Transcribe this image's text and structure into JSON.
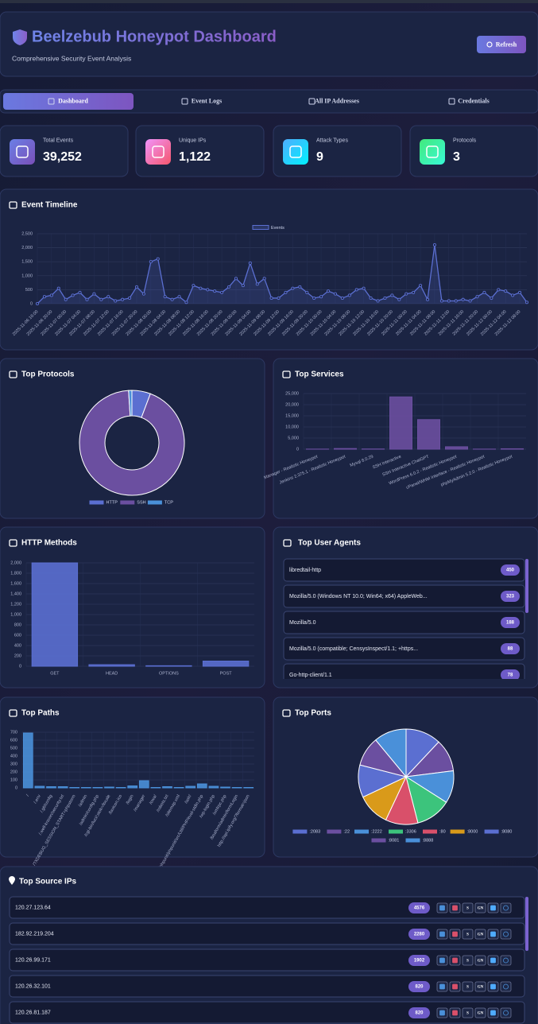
{
  "header": {
    "title": "Beelzebub Honeypot Dashboard",
    "subtitle": "Comprehensive Security Event Analysis",
    "button": "Refresh"
  },
  "nav": [
    "Dashboard",
    "Event Logs",
    "All IP Addresses",
    "Credentials"
  ],
  "stats": [
    {
      "label": "Total Events",
      "value": "39,252"
    },
    {
      "label": "Unique IPs",
      "value": "1,122"
    },
    {
      "label": "Attack Types",
      "value": 9
    },
    {
      "label": "Protocols",
      "value": 3
    }
  ],
  "chart_data": [
    {
      "type": "line",
      "title": "Event Timeline",
      "categories": [
        "2025-11-06 16:00",
        null,
        "2025-11-06 20:00",
        null,
        "2025-11-07 00:00",
        null,
        "2025-11-07 04:00",
        null,
        "2025-11-07 08:00",
        null,
        "2025-11-07 12:00",
        null,
        "2025-11-07 16:00",
        null,
        "2025-11-07 20:00",
        null,
        "2025-11-08 00:00",
        null,
        "2025-11-08 04:00",
        null,
        "2025-11-08 08:00",
        null,
        "2025-11-08 12:00",
        null,
        "2025-11-08 16:00",
        null,
        "2025-11-08 20:00",
        null,
        "2025-11-09 00:00",
        null,
        "2025-11-09 04:00",
        null,
        "2025-11-09 08:00",
        null,
        "2025-11-09 12:00",
        null,
        "2025-11-09 16:00",
        null,
        "2025-11-09 20:00",
        null,
        "2025-11-10 00:00",
        null,
        "2025-11-10 04:00",
        null,
        "2025-11-10 08:00",
        null,
        "2025-11-10 12:00",
        null,
        "2025-11-10 16:00",
        null,
        "2025-11-10 20:00",
        null,
        "2025-11-11 00:00",
        null,
        "2025-11-11 04:00",
        null,
        "2025-11-11 08:00",
        null,
        "2025-11-11 12:00",
        null,
        "2025-11-11 16:00",
        null,
        "2025-11-11 20:00",
        null,
        "2025-11-12 00:00",
        null,
        "2025-11-12 04:00",
        null,
        "2025-11-12 08:00",
        null
      ],
      "series": [
        {
          "name": "Events",
          "color": "#5b6fd1",
          "values": [
            0,
            250,
            300,
            550,
            150,
            300,
            400,
            150,
            350,
            150,
            250,
            100,
            150,
            200,
            600,
            350,
            1500,
            1600,
            250,
            150,
            250,
            50,
            650,
            550,
            500,
            450,
            400,
            600,
            900,
            650,
            1450,
            700,
            900,
            200,
            200,
            400,
            550,
            600,
            400,
            200,
            250,
            450,
            350,
            200,
            300,
            500,
            550,
            200,
            100,
            200,
            300,
            150,
            350,
            400,
            650,
            150,
            2100,
            100,
            100,
            100,
            150,
            100,
            250,
            400,
            200,
            500,
            450,
            300,
            400,
            50
          ]
        }
      ],
      "ylim": [
        0,
        2500
      ],
      "yticks": [
        0,
        500,
        {
          "value": 1000,
          "label": "1,000"
        },
        {
          "value": 1500,
          "label": "1,500"
        },
        {
          "value": 2000,
          "label": "2,000"
        },
        {
          "value": 2500,
          "label": "2,500"
        }
      ]
    },
    {
      "type": "doughnut",
      "title": "Top Protocols",
      "categories": [
        "HTTP",
        "SSH",
        "TCP"
      ],
      "values": [
        2250,
        36600,
        402
      ],
      "colors": [
        "#5b6fd1",
        "#6b4fa0",
        "#4a90d9"
      ]
    },
    {
      "type": "bar",
      "title": "Top Services",
      "categories": [
        "Manager - Realistic Honeypot",
        "Jenkins 2.375.1 - Realistic Honeypot",
        "Mysql 8.0.29",
        "SSH Interactive",
        "SSH Interactive ChatGPT",
        "WordPress 6.0.2 - Realistic Honeypot",
        "cPanel/WHM Interface - Realistic Honeypot",
        "phpMyAdmin 5.2.0 - Realistic Honeypot"
      ],
      "values": [
        50,
        300,
        100,
        23500,
        13300,
        1100,
        50,
        200
      ],
      "color": "#6b4fa0",
      "ylim": [
        0,
        25000
      ],
      "yticks": [
        0,
        {
          "value": 5000,
          "label": "5,000"
        },
        {
          "value": 10000,
          "label": "10,000"
        },
        {
          "value": 15000,
          "label": "15,000"
        },
        {
          "value": 20000,
          "label": "20,000"
        },
        {
          "value": 25000,
          "label": "25,000"
        }
      ]
    },
    {
      "type": "bar",
      "title": "HTTP Methods",
      "categories": [
        "GET",
        "HEAD",
        "OPTIONS",
        "POST"
      ],
      "values": [
        2000,
        30,
        10,
        100
      ],
      "color": "#5b6fd1",
      "ylim": [
        0,
        2000
      ],
      "yticks": [
        0,
        200,
        400,
        600,
        800,
        {
          "value": 1000,
          "label": "1,000"
        },
        {
          "value": 1200,
          "label": "1,200"
        },
        {
          "value": 1400,
          "label": "1,400"
        },
        {
          "value": 1600,
          "label": "1,600"
        },
        {
          "value": 1800,
          "label": "1,800"
        },
        {
          "value": 2000,
          "label": "2,000"
        }
      ]
    },
    {
      "type": "bar",
      "title": "Top Paths",
      "categories": [
        "/",
        "/.env",
        "/.git/config",
        "/.well-known/security.txt",
        "/?XDEBUG_SESSION_START=phpstorm",
        "/admin",
        "/admin/config.php",
        "/cgi-bin/luci/;stok=/locale",
        "/favicon.ico",
        "/login",
        "/manager",
        "/owa/",
        "/robots.txt",
        "/sitemap.xml",
        "/solr/",
        "/vendor/phpunit/phpunit/src/Util/PHP/eval-stdin.php",
        "/wp-login.php",
        "/xmlrpc.php",
        "/boaform/admin/formLogin",
        "http://api.ipify.org/?format=json"
      ],
      "values": [
        690,
        20,
        15,
        15,
        5,
        5,
        5,
        10,
        5,
        25,
        90,
        5,
        15,
        5,
        20,
        50,
        20,
        10,
        5,
        5
      ],
      "color": "#4a90d9",
      "ylim": [
        0,
        700
      ],
      "yticks": [
        0,
        100,
        200,
        300,
        400,
        500,
        600,
        700
      ]
    },
    {
      "type": "pie",
      "title": "Top Ports",
      "categories": [
        ":2083",
        ":22",
        ":2222",
        ":3306",
        ":80",
        ":8000",
        ":8080",
        ":8081",
        ":8888"
      ],
      "values": [
        12,
        11,
        11,
        12,
        11,
        11,
        11,
        10,
        11
      ],
      "colors": [
        "#5b6fd1",
        "#6b4fa0",
        "#4a90d9",
        "#3cc47c",
        "#d9506a",
        "#d99a1a",
        "#5b6fd1",
        "#6b4fa0",
        "#4a90d9"
      ]
    }
  ],
  "user_agents": {
    "title": "Top User Agents",
    "items": [
      {
        "agent": "libredtail-http",
        "count": 450
      },
      {
        "agent": "Mozilla/5.0 (Windows NT 10.0; Win64; x64) AppleWeb...",
        "count": 323
      },
      {
        "agent": "Mozilla/5.0",
        "count": 188
      },
      {
        "agent": "Mozilla/5.0 (compatible; CensysInspect/1.1; +https...",
        "count": 88
      },
      {
        "agent": "Go-http-client/1.1",
        "count": 78
      }
    ]
  },
  "source_ips": {
    "title": "Top Source IPs",
    "actions": [
      "S",
      "GN"
    ],
    "items": [
      {
        "ip": "120.27.123.64",
        "count": 4576
      },
      {
        "ip": "182.92.219.204",
        "count": 2280
      },
      {
        "ip": "120.26.99.171",
        "count": 1902
      },
      {
        "ip": "120.26.32.101",
        "count": 820
      },
      {
        "ip": "120.26.81.187",
        "count": 820
      }
    ]
  }
}
